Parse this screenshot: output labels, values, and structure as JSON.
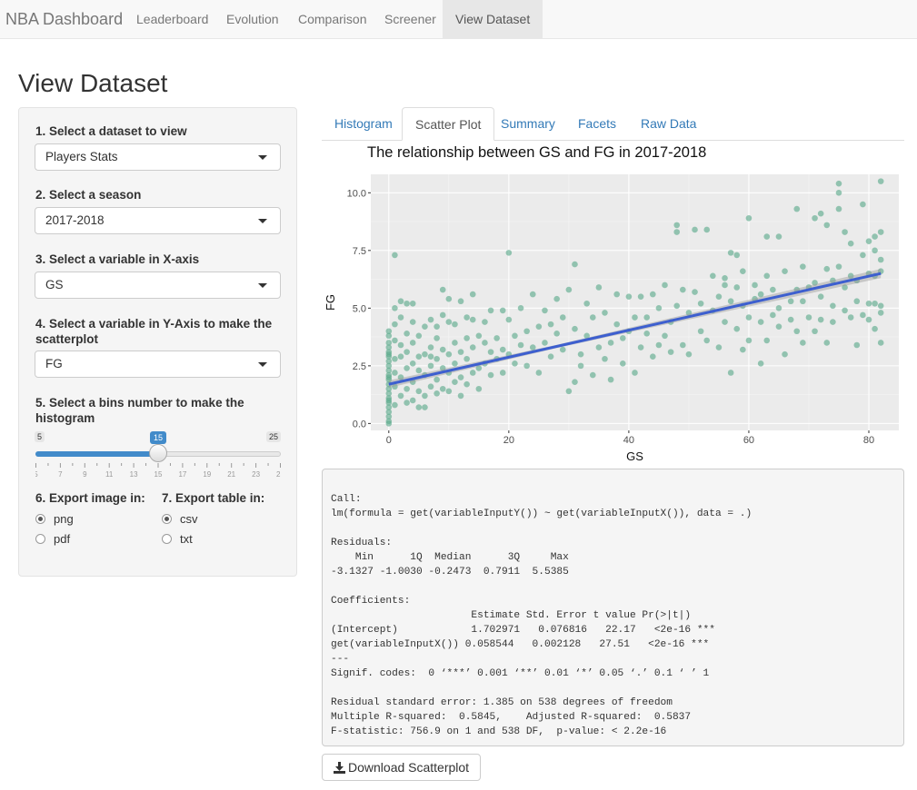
{
  "navbar": {
    "brand": "NBA Dashboard",
    "items": [
      {
        "label": "Leaderboard"
      },
      {
        "label": "Evolution"
      },
      {
        "label": "Comparison"
      },
      {
        "label": "Screener"
      },
      {
        "label": "View Dataset",
        "active": true
      }
    ]
  },
  "page_title": "View Dataset",
  "sidebar": {
    "dataset": {
      "label": "1. Select a dataset to view",
      "value": "Players Stats"
    },
    "season": {
      "label": "2. Select a season",
      "value": "2017-2018"
    },
    "x_var": {
      "label": "3. Select a variable in X-axis",
      "value": "GS"
    },
    "y_var": {
      "label": "4. Select a variable in Y-Axis to make the scatterplot",
      "value": "FG"
    },
    "bins": {
      "label": "5. Select a bins number to make the histogram",
      "min": 5,
      "max": 25,
      "value": 15,
      "min_label": "5",
      "max_label": "25",
      "value_label": "15",
      "ticks": [
        "5",
        "7",
        "9",
        "11",
        "13",
        "15",
        "17",
        "19",
        "21",
        "23",
        "25"
      ]
    },
    "export_image": {
      "label": "6. Export image in:",
      "options": [
        "png",
        "pdf"
      ],
      "selected": "png"
    },
    "export_table": {
      "label": "7. Export table in:",
      "options": [
        "csv",
        "txt"
      ],
      "selected": "csv"
    }
  },
  "tabs": [
    {
      "label": "Histogram"
    },
    {
      "label": "Scatter Plot",
      "active": true
    },
    {
      "label": "Summary"
    },
    {
      "label": "Facets"
    },
    {
      "label": "Raw Data"
    }
  ],
  "chart_data": {
    "type": "scatter",
    "title": "The relationship between GS and FG in 2017-2018",
    "xlabel": "GS",
    "ylabel": "FG",
    "xlim": [
      -3,
      85
    ],
    "ylim": [
      -0.3,
      10.8
    ],
    "x_ticks": [
      0,
      20,
      40,
      60,
      80
    ],
    "x_tick_labels": [
      "0",
      "20",
      "40",
      "60",
      "80"
    ],
    "y_ticks": [
      0,
      2.5,
      5,
      7.5,
      10
    ],
    "y_tick_labels": [
      "0.0",
      "2.5",
      "5.0",
      "7.5",
      "10.0"
    ],
    "grid": true,
    "point_color": "#5aa98a",
    "line_color": "#3d5fcf",
    "fit": {
      "intercept": 1.702971,
      "slope": 0.058544,
      "x_range": [
        0,
        82
      ]
    },
    "points": [
      [
        0,
        0.1
      ],
      [
        0,
        0.3
      ],
      [
        0,
        0.5
      ],
      [
        0,
        0.7
      ],
      [
        0,
        0.9
      ],
      [
        0,
        1.1
      ],
      [
        0,
        1.3
      ],
      [
        0,
        1.5
      ],
      [
        0,
        1.7
      ],
      [
        0,
        1.9
      ],
      [
        0,
        2.1
      ],
      [
        0,
        2.3
      ],
      [
        0,
        2.5
      ],
      [
        0,
        2.7
      ],
      [
        0,
        2.9
      ],
      [
        0,
        3.1
      ],
      [
        0,
        3.3
      ],
      [
        0,
        3.5
      ],
      [
        0,
        3.8
      ],
      [
        0,
        4.0
      ],
      [
        0,
        0.0
      ],
      [
        0,
        1.0
      ],
      [
        0,
        2.0
      ],
      [
        0,
        3.0
      ],
      [
        1,
        0.8
      ],
      [
        1,
        1.6
      ],
      [
        1,
        2.2
      ],
      [
        1,
        2.8
      ],
      [
        1,
        3.6
      ],
      [
        1,
        4.3
      ],
      [
        1,
        5.0
      ],
      [
        1,
        7.3
      ],
      [
        2,
        1.2
      ],
      [
        2,
        2.0
      ],
      [
        2,
        2.9
      ],
      [
        2,
        3.4
      ],
      [
        2,
        4.6
      ],
      [
        2,
        5.3
      ],
      [
        3,
        0.9
      ],
      [
        3,
        1.5
      ],
      [
        3,
        2.4
      ],
      [
        3,
        3.1
      ],
      [
        3,
        3.9
      ],
      [
        3,
        5.2
      ],
      [
        4,
        1.0
      ],
      [
        4,
        1.8
      ],
      [
        4,
        2.6
      ],
      [
        4,
        3.5
      ],
      [
        4,
        4.4
      ],
      [
        4,
        5.2
      ],
      [
        5,
        0.7
      ],
      [
        5,
        1.4
      ],
      [
        5,
        2.3
      ],
      [
        5,
        2.9
      ],
      [
        5,
        3.8
      ],
      [
        6,
        1.2
      ],
      [
        6,
        2.1
      ],
      [
        6,
        3.0
      ],
      [
        6,
        4.2
      ],
      [
        6,
        0.7
      ],
      [
        7,
        1.6
      ],
      [
        7,
        2.5
      ],
      [
        7,
        3.3
      ],
      [
        7,
        4.5
      ],
      [
        7,
        2.9
      ],
      [
        8,
        1.9
      ],
      [
        8,
        2.8
      ],
      [
        8,
        3.7
      ],
      [
        8,
        4.2
      ],
      [
        8,
        1.3
      ],
      [
        9,
        1.5
      ],
      [
        9,
        2.4
      ],
      [
        9,
        3.2
      ],
      [
        9,
        4.7
      ],
      [
        9,
        5.8
      ],
      [
        10,
        1.4
      ],
      [
        10,
        2.2
      ],
      [
        10,
        3.0
      ],
      [
        10,
        4.4
      ],
      [
        10,
        5.4
      ],
      [
        11,
        1.8
      ],
      [
        11,
        2.6
      ],
      [
        11,
        3.5
      ],
      [
        11,
        4.3
      ],
      [
        12,
        1.2
      ],
      [
        12,
        2.0
      ],
      [
        12,
        3.1
      ],
      [
        12,
        5.3
      ],
      [
        13,
        1.7
      ],
      [
        13,
        2.8
      ],
      [
        13,
        3.7
      ],
      [
        13,
        4.6
      ],
      [
        14,
        2.2
      ],
      [
        14,
        3.3
      ],
      [
        14,
        4.5
      ],
      [
        14,
        5.6
      ],
      [
        15,
        1.5
      ],
      [
        15,
        2.4
      ],
      [
        15,
        3.8
      ],
      [
        16,
        2.6
      ],
      [
        16,
        3.5
      ],
      [
        16,
        4.4
      ],
      [
        17,
        2.1
      ],
      [
        17,
        3.1
      ],
      [
        17,
        4.9
      ],
      [
        18,
        2.8
      ],
      [
        18,
        3.7
      ],
      [
        19,
        2.2
      ],
      [
        19,
        3.2
      ],
      [
        19,
        4.9
      ],
      [
        20,
        3.0
      ],
      [
        20,
        7.4
      ],
      [
        20,
        4.5
      ],
      [
        21,
        2.6
      ],
      [
        21,
        3.8
      ],
      [
        22,
        3.4
      ],
      [
        22,
        5.0
      ],
      [
        23,
        2.5
      ],
      [
        23,
        4.0
      ],
      [
        24,
        3.3
      ],
      [
        24,
        5.6
      ],
      [
        25,
        2.2
      ],
      [
        25,
        4.2
      ],
      [
        26,
        3.5
      ],
      [
        26,
        4.9
      ],
      [
        27,
        2.9
      ],
      [
        27,
        4.3
      ],
      [
        28,
        3.9
      ],
      [
        28,
        5.4
      ],
      [
        29,
        3.2
      ],
      [
        29,
        4.6
      ],
      [
        30,
        1.4
      ],
      [
        30,
        5.8
      ],
      [
        31,
        1.8
      ],
      [
        31,
        4.1
      ],
      [
        31,
        6.9
      ],
      [
        32,
        3.0
      ],
      [
        32,
        2.5
      ],
      [
        33,
        3.8
      ],
      [
        33,
        5.2
      ],
      [
        34,
        2.1
      ],
      [
        34,
        4.6
      ],
      [
        35,
        3.3
      ],
      [
        35,
        5.9
      ],
      [
        36,
        2.8
      ],
      [
        36,
        4.8
      ],
      [
        37,
        3.5
      ],
      [
        37,
        1.9
      ],
      [
        38,
        4.3
      ],
      [
        38,
        5.6
      ],
      [
        39,
        3.7
      ],
      [
        39,
        2.6
      ],
      [
        40,
        4.0
      ],
      [
        40,
        5.5
      ],
      [
        41,
        2.2
      ],
      [
        41,
        4.6
      ],
      [
        42,
        3.3
      ],
      [
        42,
        5.5
      ],
      [
        43,
        4.6
      ],
      [
        43,
        3.9
      ],
      [
        44,
        2.9
      ],
      [
        44,
        5.6
      ],
      [
        45,
        3.4
      ],
      [
        45,
        5.0
      ],
      [
        46,
        3.8
      ],
      [
        46,
        6.0
      ],
      [
        47,
        4.4
      ],
      [
        47,
        3.1
      ],
      [
        48,
        8.3
      ],
      [
        48,
        8.6
      ],
      [
        48,
        5.1
      ],
      [
        49,
        3.4
      ],
      [
        49,
        5.8
      ],
      [
        50,
        4.8
      ],
      [
        50,
        3.0
      ],
      [
        51,
        8.4
      ],
      [
        51,
        5.7
      ],
      [
        52,
        4.0
      ],
      [
        52,
        5.2
      ],
      [
        53,
        8.4
      ],
      [
        53,
        3.6
      ],
      [
        54,
        4.9
      ],
      [
        54,
        6.4
      ],
      [
        55,
        3.3
      ],
      [
        55,
        5.5
      ],
      [
        56,
        6.0
      ],
      [
        56,
        4.4
      ],
      [
        56,
        6.3
      ],
      [
        57,
        7.4
      ],
      [
        57,
        5.3
      ],
      [
        57,
        2.2
      ],
      [
        58,
        7.3
      ],
      [
        58,
        4.1
      ],
      [
        58,
        5.9
      ],
      [
        59,
        3.2
      ],
      [
        59,
        5.1
      ],
      [
        59,
        6.6
      ],
      [
        60,
        8.9
      ],
      [
        60,
        3.6
      ],
      [
        60,
        4.6
      ],
      [
        61,
        5.4
      ],
      [
        61,
        6.0
      ],
      [
        62,
        2.6
      ],
      [
        62,
        4.4
      ],
      [
        62,
        5.6
      ],
      [
        63,
        3.6
      ],
      [
        63,
        8.1
      ],
      [
        63,
        6.4
      ],
      [
        64,
        4.7
      ],
      [
        64,
        5.8
      ],
      [
        65,
        8.1
      ],
      [
        65,
        4.2
      ],
      [
        65,
        5.0
      ],
      [
        66,
        3.0
      ],
      [
        66,
        6.6
      ],
      [
        67,
        4.5
      ],
      [
        67,
        5.3
      ],
      [
        68,
        9.3
      ],
      [
        68,
        4.0
      ],
      [
        68,
        5.8
      ],
      [
        69,
        3.5
      ],
      [
        69,
        5.3
      ],
      [
        69,
        6.8
      ],
      [
        70,
        4.6
      ],
      [
        70,
        5.9
      ],
      [
        71,
        8.9
      ],
      [
        71,
        4.0
      ],
      [
        71,
        6.1
      ],
      [
        72,
        4.5
      ],
      [
        72,
        5.5
      ],
      [
        72,
        9.1
      ],
      [
        73,
        3.5
      ],
      [
        73,
        8.6
      ],
      [
        73,
        6.7
      ],
      [
        74,
        5.1
      ],
      [
        74,
        6.2
      ],
      [
        74,
        4.4
      ],
      [
        75,
        10.4
      ],
      [
        75,
        10.0
      ],
      [
        75,
        9.3
      ],
      [
        75,
        6.8
      ],
      [
        76,
        4.9
      ],
      [
        76,
        5.9
      ],
      [
        76,
        8.3
      ],
      [
        77,
        4.6
      ],
      [
        77,
        6.4
      ],
      [
        77,
        7.8
      ],
      [
        78,
        3.4
      ],
      [
        78,
        5.3
      ],
      [
        78,
        6.2
      ],
      [
        79,
        9.5
      ],
      [
        79,
        4.7
      ],
      [
        79,
        7.3
      ],
      [
        80,
        5.2
      ],
      [
        80,
        6.5
      ],
      [
        80,
        7.9
      ],
      [
        80,
        4.5
      ],
      [
        81,
        8.1
      ],
      [
        81,
        5.2
      ],
      [
        81,
        6.4
      ],
      [
        81,
        4.1
      ],
      [
        81,
        7.5
      ],
      [
        82,
        10.5
      ],
      [
        82,
        8.3
      ],
      [
        82,
        7.1
      ],
      [
        82,
        5.1
      ],
      [
        82,
        3.5
      ],
      [
        82,
        4.8
      ],
      [
        82,
        6.6
      ]
    ]
  },
  "summary_text": "\nCall:\nlm(formula = get(variableInputY()) ~ get(variableInputX()), data = .)\n\nResiduals:\n    Min      1Q  Median      3Q     Max \n-3.1327 -1.0030 -0.2473  0.7911  5.5385 \n\nCoefficients:\n                       Estimate Std. Error t value Pr(>|t|)    \n(Intercept)            1.702971   0.076816   22.17   <2e-16 ***\nget(variableInputX()) 0.058544   0.002128   27.51   <2e-16 ***\n---\nSignif. codes:  0 ‘***’ 0.001 ‘**’ 0.01 ‘*’ 0.05 ‘.’ 0.1 ‘ ’ 1\n\nResidual standard error: 1.385 on 538 degrees of freedom\nMultiple R-squared:  0.5845,\tAdjusted R-squared:  0.5837 \nF-statistic: 756.9 on 1 and 538 DF,  p-value: < 2.2e-16",
  "download_button": {
    "label": "Download Scatterplot",
    "icon": "download-icon"
  }
}
